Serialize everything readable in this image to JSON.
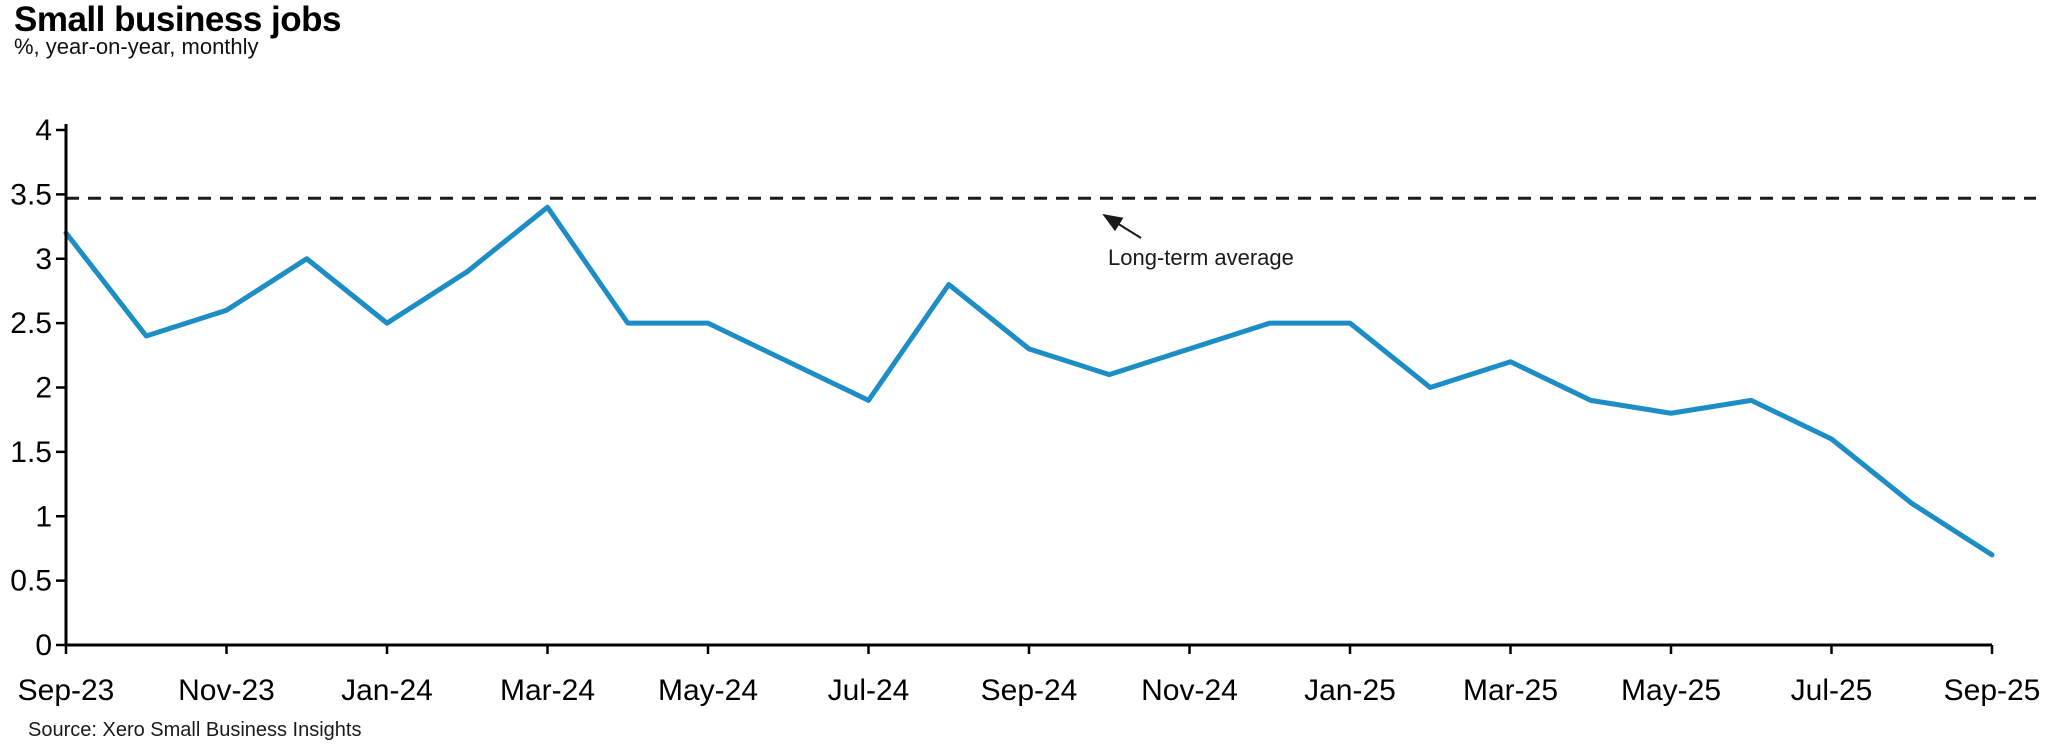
{
  "chart_data": {
    "type": "line",
    "title": "Small business jobs",
    "subtitle": "%, year-on-year, monthly",
    "source": "Source: Xero Small Business Insights",
    "x": [
      "Sep-23",
      "Oct-23",
      "Nov-23",
      "Dec-23",
      "Jan-24",
      "Feb-24",
      "Mar-24",
      "Apr-24",
      "May-24",
      "Jun-24",
      "Jul-24",
      "Aug-24",
      "Sep-24",
      "Oct-24",
      "Nov-24",
      "Dec-24",
      "Jan-25",
      "Feb-25",
      "Mar-25",
      "Apr-25",
      "May-25",
      "Jun-25",
      "Jul-25",
      "Aug-25",
      "Sep-25"
    ],
    "series": [
      {
        "name": "Small business jobs, % year-on-year",
        "values": [
          3.2,
          2.4,
          2.6,
          3.0,
          2.5,
          2.9,
          3.4,
          2.5,
          2.5,
          2.2,
          1.9,
          2.8,
          2.3,
          2.1,
          2.3,
          2.5,
          2.5,
          2.0,
          2.2,
          1.9,
          1.8,
          1.9,
          1.6,
          1.1,
          0.7
        ]
      }
    ],
    "reference_line": {
      "label": "Long-term average",
      "value": 3.47,
      "style": "dashed"
    },
    "xtick_labels": [
      "Sep-23",
      "Nov-23",
      "Jan-24",
      "Mar-24",
      "May-24",
      "Jul-24",
      "Sep-24",
      "Nov-24",
      "Jan-25",
      "Mar-25",
      "May-25",
      "Jul-25",
      "Sep-25"
    ],
    "yticks": [
      0,
      0.5,
      1,
      1.5,
      2,
      2.5,
      3,
      3.5,
      4
    ],
    "ylim": [
      0,
      4
    ],
    "grid": false,
    "legend": false,
    "line_color": "#1d8dc6",
    "reference_line_color": "#1a1a1a",
    "axis_color": "#000000"
  }
}
